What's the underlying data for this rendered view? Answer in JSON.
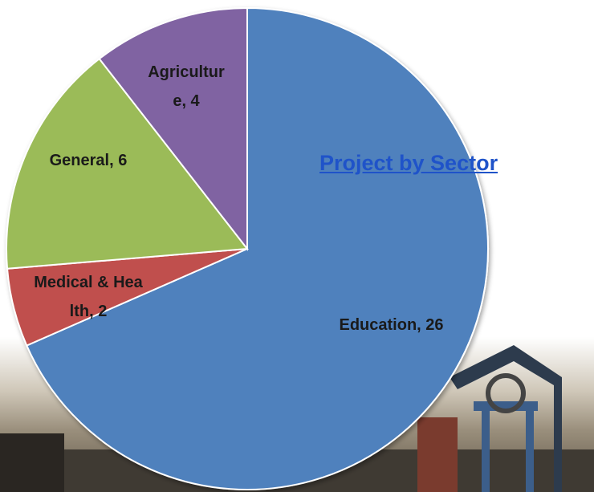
{
  "chart_data": {
    "type": "pie",
    "title": "Project by Sector",
    "categories": [
      "Education",
      "Medical & Health",
      "General",
      "Agriculture"
    ],
    "values": [
      26,
      2,
      6,
      4
    ],
    "value_labels": [
      ", 26",
      ", 2",
      ", 6",
      ", 4"
    ],
    "colors": [
      "#4f81bd",
      "#c0504d",
      "#9bbb59",
      "#8064a2"
    ]
  }
}
